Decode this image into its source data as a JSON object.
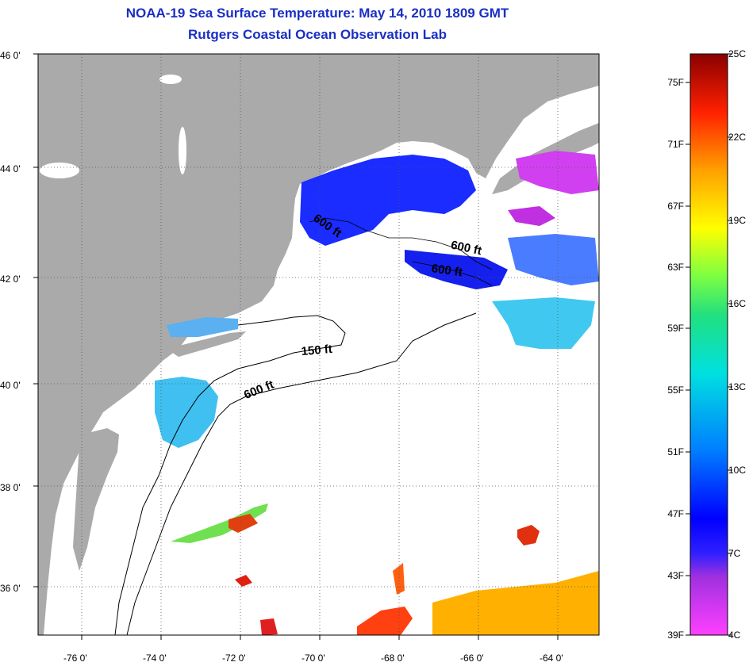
{
  "title": {
    "line1": "NOAA-19 Sea Surface Temperature:  May 14, 2010 1809 GMT",
    "line2": "Rutgers Coastal Ocean Observation Lab"
  },
  "axes": {
    "lat_labels": [
      "46 0'",
      "44 0'",
      "42 0'",
      "40 0'",
      "38 0'",
      "36 0'"
    ],
    "lon_labels": [
      "-76 0'",
      "-74 0'",
      "-72 0'",
      "-70 0'",
      "-68 0'",
      "-66 0'",
      "-64 0'"
    ]
  },
  "contours": {
    "labels": [
      "600 ft",
      "600 ft",
      "600 ft",
      "150 ft",
      "600 ft"
    ]
  },
  "colorbar": {
    "fahrenheit": [
      "75F",
      "71F",
      "67F",
      "63F",
      "59F",
      "55F",
      "51F",
      "47F",
      "43F",
      "39F"
    ],
    "celsius": [
      "25C",
      "22C",
      "19C",
      "16C",
      "13C",
      "10C",
      "7C",
      "4C"
    ]
  },
  "colors": {
    "land": "#aaaaaa",
    "title": "#1a2fc4"
  }
}
